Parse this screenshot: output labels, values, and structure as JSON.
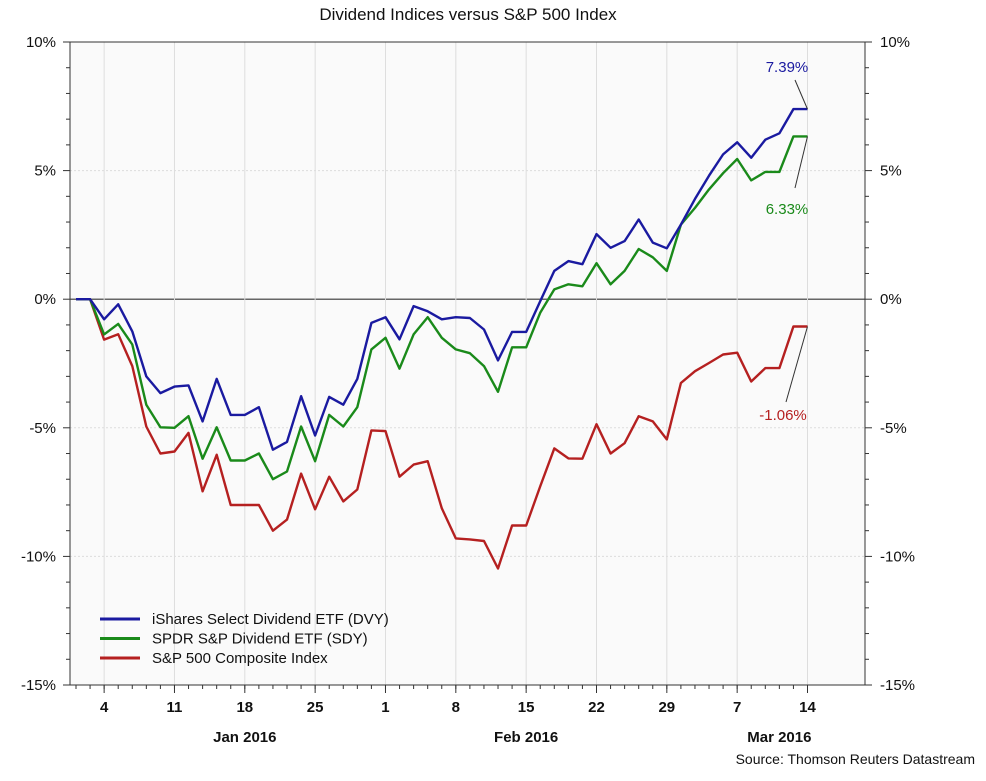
{
  "chart_data": {
    "type": "line",
    "title": "Dividend Indices versus S&P 500 Index",
    "source": "Source: Thomson Reuters Datastream",
    "ylim": [
      -15,
      10
    ],
    "y_ticks": [
      10,
      5,
      0,
      -5,
      -10,
      -15
    ],
    "y_tick_labels": [
      "10%",
      "5%",
      "0%",
      "-5%",
      "-10%",
      "-15%"
    ],
    "y_axis_sides": [
      "left",
      "right"
    ],
    "grid": true,
    "legend_placement": "bottom-left",
    "x": [
      "2015-12-30",
      "2015-12-31",
      "2016-01-04",
      "2016-01-05",
      "2016-01-06",
      "2016-01-07",
      "2016-01-08",
      "2016-01-11",
      "2016-01-12",
      "2016-01-13",
      "2016-01-14",
      "2016-01-15",
      "2016-01-18",
      "2016-01-19",
      "2016-01-20",
      "2016-01-21",
      "2016-01-22",
      "2016-01-25",
      "2016-01-26",
      "2016-01-27",
      "2016-01-28",
      "2016-01-29",
      "2016-02-01",
      "2016-02-02",
      "2016-02-03",
      "2016-02-04",
      "2016-02-05",
      "2016-02-08",
      "2016-02-09",
      "2016-02-10",
      "2016-02-11",
      "2016-02-12",
      "2016-02-15",
      "2016-02-16",
      "2016-02-17",
      "2016-02-18",
      "2016-02-19",
      "2016-02-22",
      "2016-02-23",
      "2016-02-24",
      "2016-02-25",
      "2016-02-26",
      "2016-02-29",
      "2016-03-01",
      "2016-03-02",
      "2016-03-03",
      "2016-03-04",
      "2016-03-07",
      "2016-03-08",
      "2016-03-09",
      "2016-03-10",
      "2016-03-11",
      "2016-03-14"
    ],
    "x_ticks": [
      {
        "date": "2016-01-04",
        "label": "4"
      },
      {
        "date": "2016-01-11",
        "label": "11"
      },
      {
        "date": "2016-01-18",
        "label": "18"
      },
      {
        "date": "2016-01-25",
        "label": "25"
      },
      {
        "date": "2016-02-01",
        "label": "1"
      },
      {
        "date": "2016-02-08",
        "label": "8"
      },
      {
        "date": "2016-02-15",
        "label": "15"
      },
      {
        "date": "2016-02-22",
        "label": "22"
      },
      {
        "date": "2016-02-29",
        "label": "29"
      },
      {
        "date": "2016-03-07",
        "label": "7"
      },
      {
        "date": "2016-03-14",
        "label": "14"
      }
    ],
    "month_labels": [
      {
        "date": "2016-01-18",
        "label": "Jan 2016"
      },
      {
        "date": "2016-02-15",
        "label": "Feb 2016"
      },
      {
        "date": "2016-03-10",
        "label": "Mar 2016"
      }
    ],
    "series": [
      {
        "name": "iShares Select Dividend ETF (DVY)",
        "color": "#1a1aa0",
        "end_label": "7.39%",
        "values": [
          0,
          0,
          -0.78,
          -0.2,
          -1.25,
          -3.0,
          -3.65,
          -3.4,
          -3.35,
          -4.75,
          -3.1,
          -4.5,
          -4.5,
          -4.2,
          -5.85,
          -5.55,
          -3.77,
          -5.3,
          -3.8,
          -4.1,
          -3.1,
          -0.92,
          -0.7,
          -1.56,
          -0.27,
          -0.47,
          -0.78,
          -0.7,
          -0.73,
          -1.18,
          -2.38,
          -1.27,
          -1.27,
          -0.08,
          1.1,
          1.48,
          1.36,
          2.53,
          2.0,
          2.26,
          3.1,
          2.2,
          1.98,
          2.9,
          3.9,
          4.8,
          5.63,
          6.1,
          5.5,
          6.2,
          6.45,
          7.39,
          7.39
        ]
      },
      {
        "name": "SPDR S&P Dividend ETF (SDY)",
        "color": "#1a8a1a",
        "end_label": "6.33%",
        "values": [
          0,
          0,
          -1.37,
          -0.96,
          -1.76,
          -4.1,
          -4.98,
          -5.0,
          -4.55,
          -6.2,
          -4.98,
          -6.27,
          -6.27,
          -6.0,
          -7.0,
          -6.7,
          -4.95,
          -6.3,
          -4.5,
          -4.95,
          -4.2,
          -1.95,
          -1.5,
          -2.7,
          -1.37,
          -0.7,
          -1.5,
          -1.95,
          -2.1,
          -2.6,
          -3.6,
          -1.87,
          -1.87,
          -0.53,
          0.38,
          0.58,
          0.5,
          1.4,
          0.58,
          1.1,
          1.95,
          1.63,
          1.1,
          2.9,
          3.55,
          4.27,
          4.9,
          5.45,
          4.62,
          4.95,
          4.95,
          6.33,
          6.33
        ]
      },
      {
        "name": "S&P 500 Composite Index",
        "color": "#b52020",
        "end_label": "-1.06%",
        "values": [
          0,
          0,
          -1.57,
          -1.36,
          -2.6,
          -4.95,
          -6.0,
          -5.92,
          -5.2,
          -7.47,
          -6.05,
          -8.0,
          -8.0,
          -8.0,
          -9.0,
          -8.57,
          -6.78,
          -8.17,
          -6.9,
          -7.86,
          -7.4,
          -5.1,
          -5.13,
          -6.9,
          -6.43,
          -6.3,
          -8.13,
          -9.3,
          -9.34,
          -9.4,
          -10.47,
          -8.8,
          -8.8,
          -7.28,
          -5.8,
          -6.19,
          -6.2,
          -4.86,
          -6.0,
          -5.6,
          -4.55,
          -4.75,
          -5.45,
          -3.26,
          -2.8,
          -2.48,
          -2.15,
          -2.08,
          -3.2,
          -2.68,
          -2.68,
          -1.06,
          -1.06
        ]
      }
    ]
  }
}
